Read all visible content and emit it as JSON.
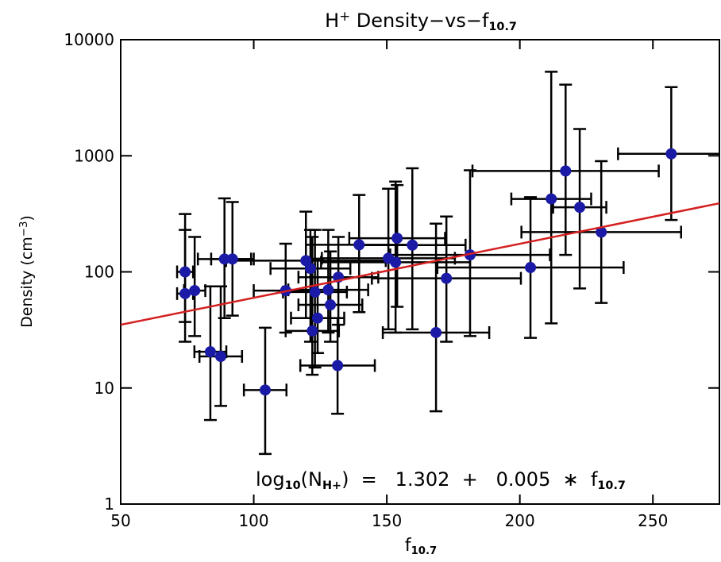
{
  "chart_data": {
    "type": "scatter",
    "title": [
      {
        "text": "H"
      },
      {
        "text": "+",
        "sup": true
      },
      {
        "text": " Density−vs−f"
      },
      {
        "text": "10.7",
        "sub": true
      }
    ],
    "x_label": [
      {
        "text": "f"
      },
      {
        "text": "10.7",
        "sub": true
      }
    ],
    "y_label": [
      {
        "text": "Density (cm"
      },
      {
        "text": "−3",
        "sup": true
      },
      {
        "text": ")"
      }
    ],
    "annotation": [
      {
        "text": "log"
      },
      {
        "text": "10",
        "sub": true
      },
      {
        "text": "(N"
      },
      {
        "text": "H+",
        "sub": true
      },
      {
        "text": ")  =   1.302  +   0.005  ∗  f"
      },
      {
        "text": "10.7",
        "sub": true
      }
    ],
    "xlim": [
      50,
      275
    ],
    "ylim": [
      1,
      10000
    ],
    "y_log": true,
    "xticks": [
      50,
      100,
      150,
      200,
      250
    ],
    "yticks": [
      1,
      10,
      100,
      1000,
      10000
    ],
    "series": [
      {
        "color": "#1a1aa6",
        "x": [
          74.2,
          74.2,
          77.8,
          83.7,
          87.6,
          89,
          92,
          104.3,
          112,
          119.6,
          121.3,
          122,
          123,
          124,
          128,
          128.8,
          131.5,
          131.8,
          139.6,
          150.6,
          153.3,
          153.9,
          159.6,
          168.5,
          172.4,
          181.3,
          204,
          211.8,
          217.2,
          222.5,
          230.6,
          256.9
        ],
        "values": [
          100,
          65,
          69,
          20.5,
          18.7,
          129,
          129,
          9.6,
          69,
          125,
          107,
          31,
          67,
          40,
          70,
          52,
          15.6,
          90,
          171,
          131,
          121,
          195,
          170,
          30,
          88,
          140,
          109,
          425,
          740,
          360,
          220,
          1040
        ],
        "x_err": [
          3,
          3,
          4,
          6,
          8,
          10,
          8,
          8,
          12,
          30,
          15,
          10,
          12,
          10,
          15,
          12,
          14,
          15,
          20,
          25,
          28,
          18,
          20,
          20,
          28,
          30,
          35,
          15,
          35,
          10,
          30,
          20
        ],
        "y_low": [
          25,
          37,
          28,
          5.3,
          7,
          40,
          42,
          2.7,
          30,
          40,
          25,
          13,
          15,
          20,
          30,
          25,
          6,
          35,
          45,
          32,
          30,
          50,
          32,
          6.3,
          25,
          28,
          27,
          36,
          140,
          72,
          54,
          280
        ],
        "y_high": [
          315,
          230,
          200,
          75,
          75,
          430,
          400,
          33,
          175,
          330,
          230,
          200,
          230,
          130,
          230,
          150,
          40,
          200,
          460,
          520,
          600,
          560,
          780,
          260,
          300,
          750,
          440,
          5300,
          4100,
          1700,
          900,
          3900
        ]
      }
    ],
    "fit": {
      "color": "#d42020",
      "x": [
        50,
        275
      ],
      "y": [
        35,
        390
      ]
    }
  }
}
